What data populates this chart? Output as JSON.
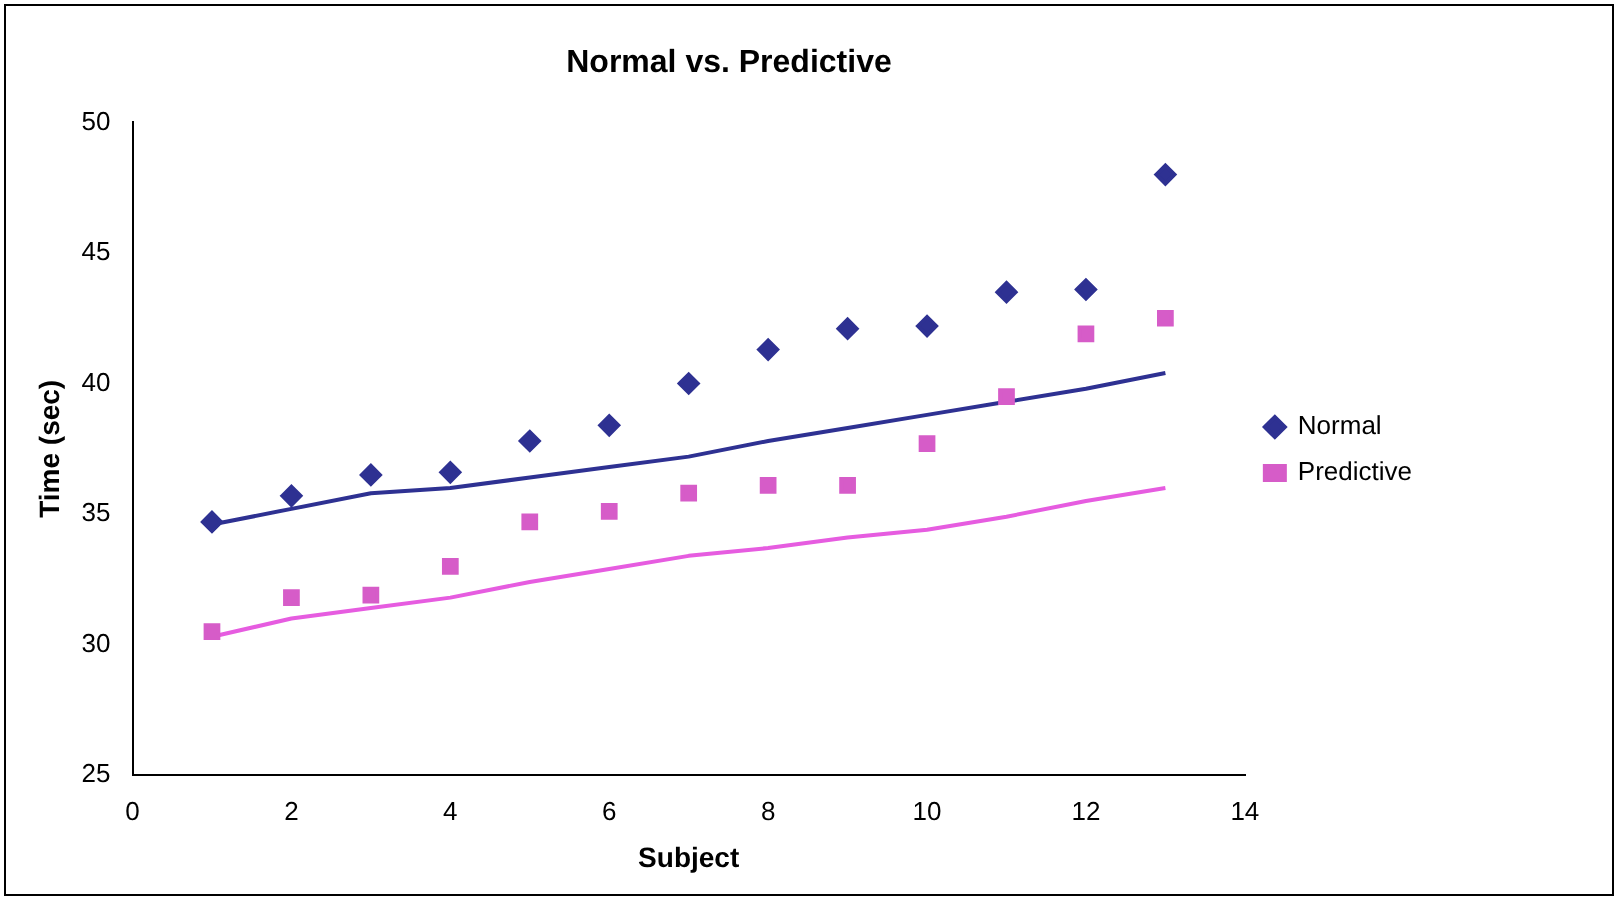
{
  "chart_data": {
    "type": "scatter",
    "title": "Normal vs. Predictive",
    "xlabel": "Subject",
    "ylabel": "Time (sec)",
    "x": [
      1,
      2,
      3,
      4,
      5,
      6,
      7,
      8,
      9,
      10,
      11,
      12,
      13
    ],
    "series": [
      {
        "name": "Normal",
        "color": "#2e3192",
        "marker": "diamond",
        "values": [
          34.7,
          35.7,
          36.5,
          36.6,
          37.8,
          38.4,
          40.0,
          41.3,
          42.1,
          42.2,
          43.5,
          43.6,
          48.0
        ]
      },
      {
        "name": "Predictive",
        "color": "#d65cc8",
        "marker": "square",
        "values": [
          30.5,
          31.8,
          31.9,
          33.0,
          34.7,
          35.1,
          35.8,
          36.1,
          36.1,
          37.7,
          39.5,
          41.9,
          42.5
        ]
      },
      {
        "type": "line",
        "color": "#2e3192",
        "marker": "none",
        "values": [
          34.6,
          35.2,
          35.8,
          36.0,
          36.4,
          36.8,
          37.2,
          37.8,
          38.3,
          38.8,
          39.3,
          39.8,
          40.4
        ]
      },
      {
        "type": "line",
        "color": "#e65ce0",
        "marker": "none",
        "values": [
          30.3,
          31.0,
          31.4,
          31.8,
          32.4,
          32.9,
          33.4,
          33.7,
          34.1,
          34.4,
          34.9,
          35.5,
          36.0
        ]
      }
    ],
    "xlim": [
      0,
      14
    ],
    "xticks": [
      0,
      2,
      4,
      6,
      8,
      10,
      12,
      14
    ],
    "ylim": [
      25,
      50
    ],
    "yticks": [
      25,
      30,
      35,
      40,
      45,
      50
    ],
    "grid": false,
    "legend": "right"
  }
}
